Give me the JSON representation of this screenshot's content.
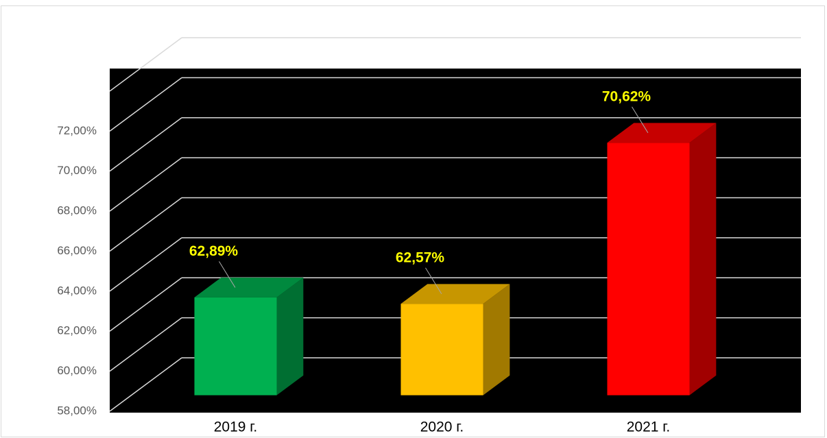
{
  "chart_data": {
    "type": "bar3d",
    "categories": [
      "2019 г.",
      "2020 г.",
      "2021 г."
    ],
    "values": [
      62.89,
      62.57,
      70.62
    ],
    "value_labels": [
      "62,89%",
      "62,57%",
      "70,62%"
    ],
    "colors": [
      "#00b050",
      "#ffc000",
      "#ff0000"
    ],
    "ylim": [
      58,
      74
    ],
    "yticks": [
      {
        "value": 58,
        "label": "58,00%"
      },
      {
        "value": 60,
        "label": "60,00%"
      },
      {
        "value": 62,
        "label": "62,00%"
      },
      {
        "value": 64,
        "label": "64,00%"
      },
      {
        "value": 66,
        "label": "66,00%"
      },
      {
        "value": 68,
        "label": "68,00%"
      },
      {
        "value": 70,
        "label": "70,00%"
      },
      {
        "value": 72,
        "label": "72,00%"
      }
    ],
    "grid": true
  }
}
